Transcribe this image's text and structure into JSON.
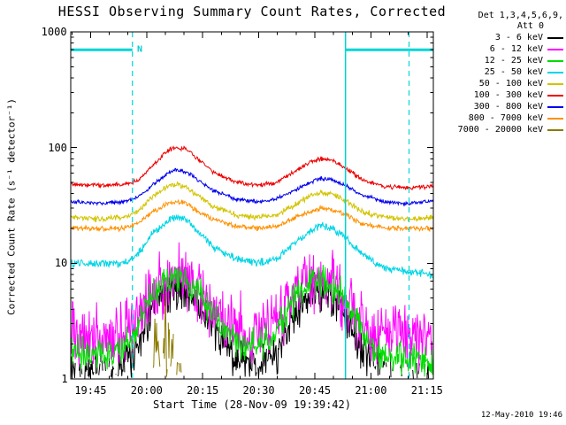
{
  "title": "HESSI Observing Summary Count Rates, Corrected",
  "timestamp": "12-May-2010 19:46",
  "legend": {
    "heading_line1": "Det 1,3,4,5,6,9,",
    "heading_line2": "Att 0"
  },
  "chart_data": {
    "type": "line",
    "title": "HESSI Observing Summary Count Rates, Corrected",
    "xlabel": "Start Time (28-Nov-09 19:39:42)",
    "ylabel": "Corrected Count Rate (s⁻¹ detector⁻¹)",
    "y_scale": "log",
    "ylim": [
      1,
      1000
    ],
    "x_minutes_range": [
      0,
      97
    ],
    "y_ticks": [
      {
        "v": 1,
        "label": "1"
      },
      {
        "v": 10,
        "label": "10"
      },
      {
        "v": 100,
        "label": "100"
      },
      {
        "v": 1000,
        "label": "1000"
      }
    ],
    "x_ticks": [
      {
        "t": 5.3,
        "label": "19:45"
      },
      {
        "t": 20.3,
        "label": "20:00"
      },
      {
        "t": 35.3,
        "label": "20:15"
      },
      {
        "t": 50.3,
        "label": "20:30"
      },
      {
        "t": 65.3,
        "label": "20:45"
      },
      {
        "t": 80.3,
        "label": "21:00"
      },
      {
        "t": 95.3,
        "label": "21:15"
      }
    ],
    "flags": {
      "label": "N",
      "level": 700,
      "color": "#00d5d5",
      "night_segments_t": [
        [
          0,
          16.5
        ],
        [
          73.5,
          97
        ]
      ],
      "dashed_lines_t": [
        16.5,
        90.5
      ],
      "solid_lines_t": [
        73.5
      ]
    },
    "series": [
      {
        "name": "3 - 6 keV",
        "color": "#000000",
        "noise": 0.22,
        "points": [
          [
            0,
            1.2
          ],
          [
            8,
            1.1
          ],
          [
            14,
            1.2
          ],
          [
            17,
            1.8
          ],
          [
            20,
            3
          ],
          [
            24,
            5
          ],
          [
            27,
            6
          ],
          [
            30,
            6
          ],
          [
            33,
            5
          ],
          [
            36,
            3.5
          ],
          [
            40,
            2.2
          ],
          [
            45,
            1.4
          ],
          [
            50,
            1.3
          ],
          [
            55,
            1.6
          ],
          [
            58,
            2.8
          ],
          [
            62,
            4.5
          ],
          [
            65,
            5.5
          ],
          [
            68,
            5.5
          ],
          [
            71,
            4.5
          ],
          [
            74,
            3.2
          ],
          [
            77,
            2
          ],
          [
            80,
            1.4
          ],
          [
            85,
            1.1
          ],
          [
            90,
            1.0
          ],
          [
            97,
            1.0
          ]
        ]
      },
      {
        "name": "6 - 12 keV",
        "color": "#ff00ff",
        "noise": 0.33,
        "points": [
          [
            0,
            2.5
          ],
          [
            8,
            2.2
          ],
          [
            14,
            2.5
          ],
          [
            17,
            3
          ],
          [
            20,
            4.5
          ],
          [
            24,
            6.5
          ],
          [
            27,
            7.5
          ],
          [
            30,
            7.5
          ],
          [
            33,
            6.5
          ],
          [
            36,
            5
          ],
          [
            40,
            3.5
          ],
          [
            45,
            2.8
          ],
          [
            50,
            2.8
          ],
          [
            55,
            3
          ],
          [
            58,
            4.2
          ],
          [
            62,
            6
          ],
          [
            65,
            7
          ],
          [
            68,
            7
          ],
          [
            71,
            6
          ],
          [
            74,
            5
          ],
          [
            77,
            3.5
          ],
          [
            80,
            2.8
          ],
          [
            85,
            2.5
          ],
          [
            90,
            2.3
          ],
          [
            97,
            2.2
          ]
        ]
      },
      {
        "name": "12 - 25 keV",
        "color": "#00dd00",
        "noise": 0.17,
        "points": [
          [
            0,
            1.8
          ],
          [
            8,
            1.6
          ],
          [
            14,
            1.8
          ],
          [
            17,
            2.5
          ],
          [
            20,
            4
          ],
          [
            24,
            6.5
          ],
          [
            27,
            7.5
          ],
          [
            30,
            7.5
          ],
          [
            33,
            6.5
          ],
          [
            36,
            4.5
          ],
          [
            40,
            3
          ],
          [
            45,
            2
          ],
          [
            50,
            2
          ],
          [
            55,
            2.5
          ],
          [
            58,
            4
          ],
          [
            62,
            6
          ],
          [
            65,
            7
          ],
          [
            68,
            7
          ],
          [
            71,
            6
          ],
          [
            74,
            4.5
          ],
          [
            77,
            3
          ],
          [
            80,
            2
          ],
          [
            85,
            1.6
          ],
          [
            90,
            1.5
          ],
          [
            97,
            1.4
          ]
        ]
      },
      {
        "name": "25 - 50 keV",
        "color": "#00d5e5",
        "noise": 0.04,
        "points": [
          [
            0,
            10
          ],
          [
            8,
            10
          ],
          [
            14,
            10
          ],
          [
            18,
            12
          ],
          [
            22,
            18
          ],
          [
            26,
            23
          ],
          [
            28,
            25
          ],
          [
            31,
            24
          ],
          [
            34,
            19
          ],
          [
            38,
            14
          ],
          [
            44,
            11
          ],
          [
            50,
            10
          ],
          [
            55,
            11
          ],
          [
            60,
            15
          ],
          [
            64,
            19
          ],
          [
            67,
            21
          ],
          [
            70,
            20
          ],
          [
            74,
            16
          ],
          [
            78,
            12
          ],
          [
            84,
            9
          ],
          [
            90,
            8.5
          ],
          [
            97,
            8
          ]
        ]
      },
      {
        "name": "50 - 100 keV",
        "color": "#d2c400",
        "noise": 0.03,
        "points": [
          [
            0,
            25
          ],
          [
            8,
            24
          ],
          [
            14,
            25
          ],
          [
            18,
            28
          ],
          [
            22,
            38
          ],
          [
            26,
            46
          ],
          [
            28,
            48
          ],
          [
            31,
            46
          ],
          [
            34,
            38
          ],
          [
            38,
            31
          ],
          [
            44,
            26
          ],
          [
            50,
            25
          ],
          [
            55,
            26
          ],
          [
            60,
            32
          ],
          [
            64,
            38
          ],
          [
            67,
            41
          ],
          [
            70,
            40
          ],
          [
            74,
            34
          ],
          [
            78,
            28
          ],
          [
            84,
            25
          ],
          [
            90,
            24
          ],
          [
            97,
            25
          ]
        ]
      },
      {
        "name": "100 - 300 keV",
        "color": "#ee0000",
        "noise": 0.022,
        "points": [
          [
            0,
            48
          ],
          [
            8,
            47
          ],
          [
            14,
            48
          ],
          [
            18,
            52
          ],
          [
            22,
            70
          ],
          [
            26,
            95
          ],
          [
            28,
            100
          ],
          [
            31,
            97
          ],
          [
            34,
            80
          ],
          [
            38,
            62
          ],
          [
            44,
            50
          ],
          [
            50,
            47
          ],
          [
            55,
            50
          ],
          [
            60,
            62
          ],
          [
            64,
            75
          ],
          [
            67,
            80
          ],
          [
            70,
            78
          ],
          [
            74,
            65
          ],
          [
            78,
            53
          ],
          [
            84,
            46
          ],
          [
            90,
            45
          ],
          [
            97,
            46
          ]
        ]
      },
      {
        "name": "300 - 800 keV",
        "color": "#0000ee",
        "noise": 0.02,
        "points": [
          [
            0,
            34
          ],
          [
            8,
            33
          ],
          [
            14,
            34
          ],
          [
            18,
            37
          ],
          [
            22,
            48
          ],
          [
            26,
            60
          ],
          [
            28,
            64
          ],
          [
            31,
            62
          ],
          [
            34,
            52
          ],
          [
            38,
            43
          ],
          [
            44,
            36
          ],
          [
            50,
            34
          ],
          [
            55,
            36
          ],
          [
            60,
            43
          ],
          [
            64,
            50
          ],
          [
            67,
            54
          ],
          [
            70,
            53
          ],
          [
            74,
            46
          ],
          [
            78,
            39
          ],
          [
            84,
            34
          ],
          [
            90,
            33
          ],
          [
            97,
            34
          ]
        ]
      },
      {
        "name": "800 - 7000 keV",
        "color": "#ff9100",
        "noise": 0.025,
        "points": [
          [
            0,
            20
          ],
          [
            8,
            20
          ],
          [
            14,
            20
          ],
          [
            18,
            22
          ],
          [
            22,
            28
          ],
          [
            26,
            33
          ],
          [
            28,
            34
          ],
          [
            31,
            33
          ],
          [
            34,
            28
          ],
          [
            38,
            24
          ],
          [
            44,
            21
          ],
          [
            50,
            20
          ],
          [
            55,
            21
          ],
          [
            60,
            25
          ],
          [
            64,
            28
          ],
          [
            67,
            30
          ],
          [
            70,
            29
          ],
          [
            74,
            26
          ],
          [
            78,
            22
          ],
          [
            84,
            20
          ],
          [
            90,
            20
          ],
          [
            97,
            20
          ]
        ]
      },
      {
        "name": "7000 - 20000 keV",
        "color": "#8b7a00",
        "noise": 0.45,
        "points": [
          [
            0,
            0.25
          ],
          [
            21,
            0.25
          ],
          [
            21.5,
            0.8
          ],
          [
            22,
            1.6
          ],
          [
            23,
            2.6
          ],
          [
            24,
            1.1
          ],
          [
            25,
            2.9
          ],
          [
            26,
            1.4
          ],
          [
            27,
            2.3
          ],
          [
            28,
            1.0
          ],
          [
            29,
            1.9
          ],
          [
            30,
            0.5
          ],
          [
            31,
            0.25
          ],
          [
            97,
            0.25
          ]
        ]
      }
    ]
  }
}
